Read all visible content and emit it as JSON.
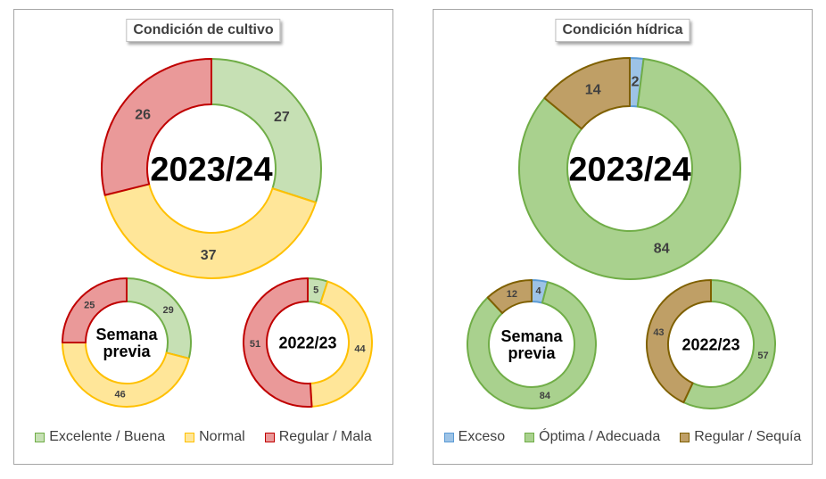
{
  "chart_data": [
    {
      "type": "donut",
      "panel": "left",
      "title": "Condición  de cultivo",
      "legend": [
        {
          "label": "Excelente / Buena",
          "fill": "#c6e0b4",
          "stroke": "#70ad47"
        },
        {
          "label": "Normal",
          "fill": "#ffe699",
          "stroke": "#ffc000"
        },
        {
          "label": "Regular / Mala",
          "fill": "#ea9999",
          "stroke": "#c00000"
        }
      ],
      "donuts": [
        {
          "center_label": "2023/24",
          "values": [
            27,
            37,
            26
          ]
        },
        {
          "center_label": "Semana previa",
          "values": [
            29,
            46,
            25
          ]
        },
        {
          "center_label": "2022/23",
          "values": [
            5,
            44,
            51
          ]
        }
      ]
    },
    {
      "type": "donut",
      "panel": "right",
      "title": "Condición  hídrica",
      "legend": [
        {
          "label": "Exceso",
          "fill": "#9dc3e6",
          "stroke": "#5b9bd5"
        },
        {
          "label": "Óptima / Adecuada",
          "fill": "#a9d18e",
          "stroke": "#70ad47"
        },
        {
          "label": "Regular / Sequía",
          "fill": "#bf9f66",
          "stroke": "#7f6000"
        }
      ],
      "donuts": [
        {
          "center_label": "2023/24",
          "values": [
            2,
            84,
            14
          ]
        },
        {
          "center_label": "Semana previa",
          "values": [
            4,
            84,
            12
          ]
        },
        {
          "center_label": "2022/23",
          "values": [
            0,
            57,
            43
          ]
        }
      ]
    }
  ]
}
